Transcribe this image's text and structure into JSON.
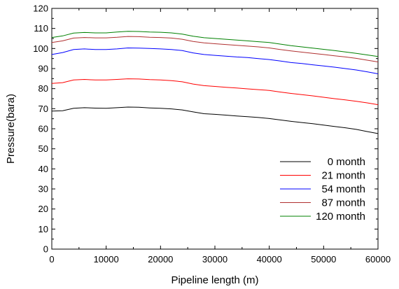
{
  "chart_data": {
    "type": "line",
    "title": "",
    "xlabel": "Pipeline length (m)",
    "ylabel": "Pressure(bara)",
    "xlim": [
      0,
      60000
    ],
    "ylim": [
      0,
      120
    ],
    "x_ticks": [
      0,
      10000,
      20000,
      30000,
      40000,
      50000,
      60000
    ],
    "y_ticks": [
      0,
      10,
      20,
      30,
      40,
      50,
      60,
      70,
      80,
      90,
      100,
      110,
      120
    ],
    "grid": false,
    "legend_position": "bottom-right",
    "x": [
      0,
      2000,
      4000,
      6000,
      8000,
      10000,
      12000,
      14000,
      16000,
      18000,
      20000,
      22000,
      24000,
      26000,
      28000,
      30000,
      32000,
      34000,
      36000,
      38000,
      40000,
      42000,
      44000,
      46000,
      48000,
      50000,
      52000,
      54000,
      56000,
      58000,
      60000
    ],
    "series": [
      {
        "name": "0 month",
        "color": "#000000",
        "values": [
          68.8,
          69.0,
          70.2,
          70.5,
          70.3,
          70.2,
          70.5,
          70.8,
          70.7,
          70.4,
          70.2,
          69.9,
          69.4,
          68.4,
          67.5,
          67.2,
          66.8,
          66.4,
          66.0,
          65.6,
          65.1,
          64.4,
          63.7,
          63.1,
          62.5,
          61.8,
          61.1,
          60.5,
          59.7,
          58.6,
          57.6
        ]
      },
      {
        "name": "21 month",
        "color": "#ff0000",
        "values": [
          82.6,
          83.0,
          84.3,
          84.6,
          84.3,
          84.3,
          84.6,
          84.9,
          84.8,
          84.5,
          84.3,
          84.0,
          83.4,
          82.3,
          81.5,
          81.1,
          80.7,
          80.3,
          79.9,
          79.5,
          79.1,
          78.3,
          77.6,
          77.0,
          76.4,
          75.7,
          75.0,
          74.4,
          73.7,
          72.9,
          72.0
        ]
      },
      {
        "name": "54 month",
        "color": "#0000ff",
        "values": [
          97.0,
          98.0,
          99.5,
          99.8,
          99.5,
          99.5,
          99.8,
          100.3,
          100.2,
          100.0,
          99.8,
          99.5,
          99.0,
          97.8,
          97.0,
          96.6,
          96.2,
          95.8,
          95.5,
          95.0,
          94.5,
          93.8,
          93.0,
          92.5,
          91.9,
          91.3,
          90.7,
          90.0,
          89.3,
          88.4,
          87.4
        ]
      },
      {
        "name": "87 month",
        "color": "#b03030",
        "values": [
          103.0,
          103.8,
          105.2,
          105.5,
          105.3,
          105.3,
          105.6,
          106.0,
          105.9,
          105.6,
          105.5,
          105.2,
          104.6,
          103.5,
          102.8,
          102.4,
          102.0,
          101.6,
          101.2,
          100.8,
          100.3,
          99.5,
          98.8,
          98.2,
          97.6,
          97.0,
          96.4,
          95.8,
          95.1,
          94.2,
          93.3
        ]
      },
      {
        "name": "120 month",
        "color": "#008000",
        "values": [
          105.5,
          106.3,
          107.7,
          108.0,
          107.8,
          107.8,
          108.2,
          108.6,
          108.5,
          108.2,
          108.1,
          107.8,
          107.2,
          106.1,
          105.4,
          105.0,
          104.6,
          104.2,
          103.8,
          103.4,
          103.0,
          102.2,
          101.4,
          100.8,
          100.2,
          99.6,
          99.0,
          98.3,
          97.6,
          96.8,
          96.0
        ]
      }
    ]
  }
}
